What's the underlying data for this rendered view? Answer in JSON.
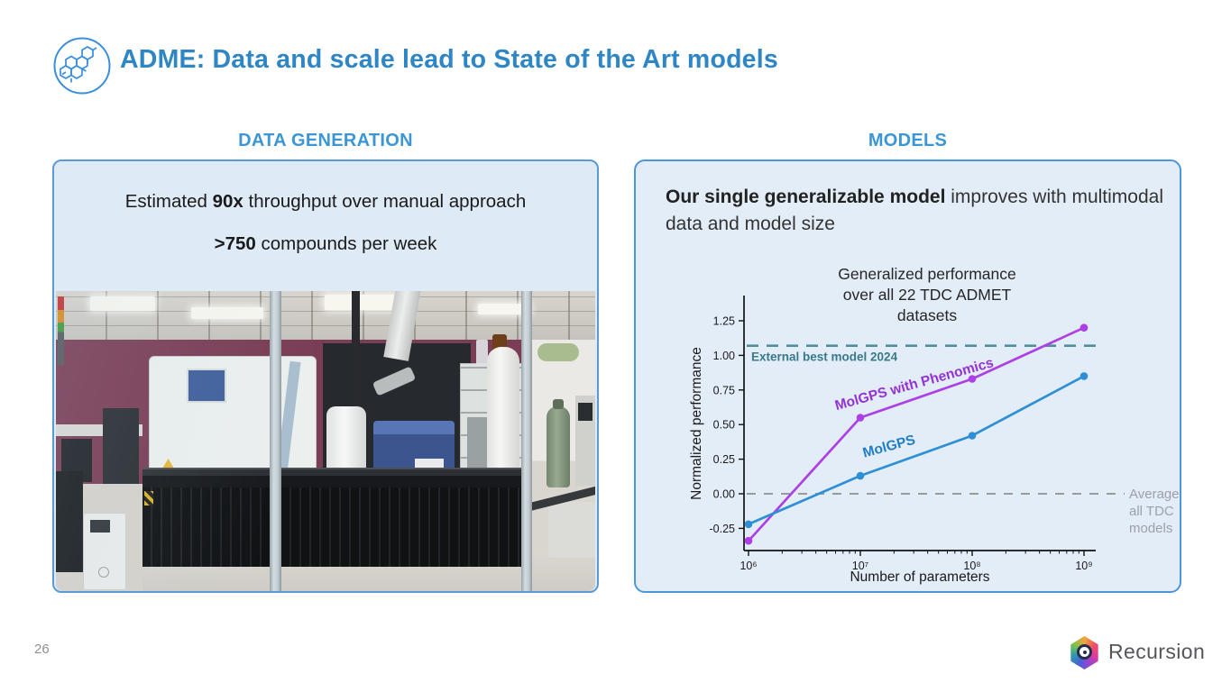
{
  "slide": {
    "title": "ADME: Data and scale lead to State of the Art models",
    "page_number": "26",
    "logo": {
      "text": "Recursion"
    }
  },
  "colors": {
    "title_blue": "#2E86C4",
    "heading_blue": "#3B96D5",
    "panel_fill": "#DEEAF6",
    "panel_border": "#5B9BD5",
    "molgps_blue": "#2E8FD5",
    "phenomics_purple": "#AC3FE6"
  },
  "left_panel": {
    "heading": "DATA GENERATION",
    "stat_line1": {
      "prefix": "Estimated ",
      "bold": "90x",
      "suffix": " throughput over manual approach"
    },
    "stat_line2": {
      "bold": ">750",
      "suffix": " compounds per week"
    },
    "photo": "automated-chemistry-lab"
  },
  "right_panel": {
    "heading": "MODELS",
    "description": {
      "bold": "Our single generalizable model",
      "rest": " improves with multimodal data and model size"
    }
  },
  "chart_data": {
    "type": "line",
    "title": "Generalized performance\nover all 22 TDC ADMET\ndatasets",
    "xlabel": "Number of parameters",
    "ylabel": "Normalized performance",
    "x_scale": "log",
    "x_values": [
      1000000,
      10000000,
      100000000,
      1000000000
    ],
    "x_tick_labels": [
      "10⁶",
      "10⁷",
      "10⁸",
      "10⁹"
    ],
    "y_ticks": [
      -0.25,
      0,
      0.25,
      0.5,
      0.75,
      1,
      1.25
    ],
    "ylim": [
      -0.45,
      1.4
    ],
    "grid": false,
    "legend_position": "inline-labels",
    "series": [
      {
        "name": "MolGPS with Phenomics",
        "color": "#AC3FE6",
        "label_color": "#9333D4",
        "values": [
          -0.34,
          0.55,
          0.83,
          1.2
        ]
      },
      {
        "name": "MolGPS",
        "color": "#2E8FD5",
        "label_color": "#1F7EC4",
        "values": [
          -0.22,
          0.13,
          0.42,
          0.85
        ]
      }
    ],
    "reference_lines": [
      {
        "label": "External best model 2024",
        "value": 1.07,
        "color": "#4E8F9B",
        "label_color": "#39798A",
        "style": "dashed"
      },
      {
        "label": "Average of all TDC models",
        "label_lines": [
          "Average of",
          "all TDC",
          "models"
        ],
        "value": 0,
        "color": "#9B9B9B",
        "label_color": "#9CA1A6",
        "style": "dashed"
      }
    ]
  }
}
